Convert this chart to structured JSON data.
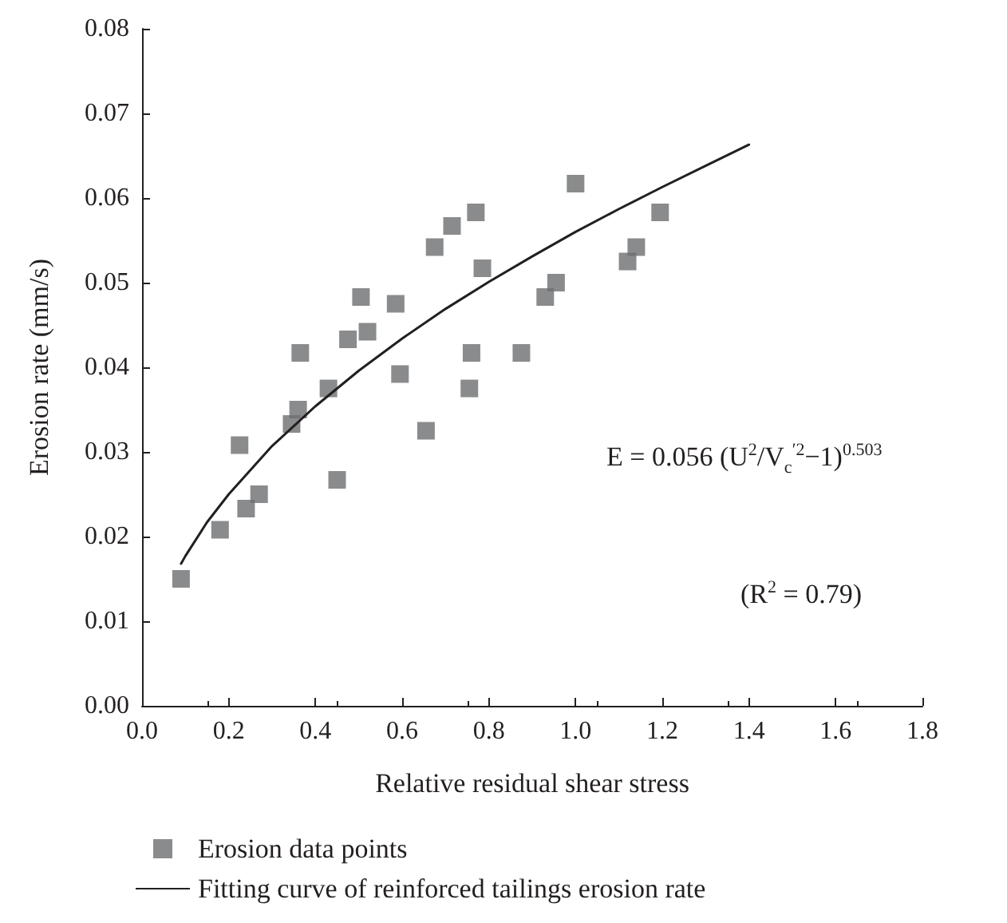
{
  "chart_data": {
    "type": "scatter",
    "xlabel": "Relative residual shear stress",
    "ylabel": "Erosion rate (mm/s)",
    "xlim": [
      0.0,
      1.8
    ],
    "xticks": [
      {
        "value": 0,
        "label": "0.0"
      },
      0.2,
      0.4,
      0.6,
      0.8,
      {
        "value": 1,
        "label": "1.0"
      },
      1.2,
      1.4,
      1.6,
      1.8
    ],
    "ylim": [
      0,
      0.08
    ],
    "yticks": [
      {
        "value": 0,
        "label": "0.00"
      },
      0.01,
      0.02,
      0.03,
      0.04,
      0.05,
      0.06,
      0.07,
      0.08
    ],
    "grid": false,
    "legend": "bottom left",
    "marker": "square",
    "series": [
      {
        "name": "Erosion data points",
        "color": "#6d6e71",
        "x": [
          0.09,
          0.18,
          0.225,
          0.24,
          0.27,
          0.345,
          0.36,
          0.365,
          0.43,
          0.45,
          0.475,
          0.505,
          0.52,
          0.585,
          0.595,
          0.655,
          0.675,
          0.715,
          0.755,
          0.76,
          0.77,
          0.785,
          0.875,
          0.93,
          0.955,
          1.0,
          1.12,
          1.14,
          1.195
        ],
        "values": [
          0.015,
          0.0208,
          0.0308,
          0.0233,
          0.025,
          0.0333,
          0.035,
          0.0417,
          0.0375,
          0.0267,
          0.0433,
          0.0483,
          0.0442,
          0.0475,
          0.0392,
          0.0325,
          0.0542,
          0.0567,
          0.0375,
          0.0417,
          0.0583,
          0.0517,
          0.0417,
          0.0483,
          0.05,
          0.0617,
          0.0525,
          0.0542,
          0.0583
        ]
      },
      {
        "name": "Fitting curve of reinforced tailings erosion rate",
        "type": "line",
        "marker": "none",
        "line_style": "solid",
        "color": "#231f20",
        "x": [
          0.09,
          0.1,
          0.15,
          0.2,
          0.3,
          0.4,
          0.5,
          0.6,
          0.7,
          0.8,
          0.9,
          1.0,
          1.1,
          1.2,
          1.3,
          1.4
        ],
        "values": [
          0.0168,
          0.0177,
          0.0217,
          0.025,
          0.0307,
          0.0354,
          0.0396,
          0.0434,
          0.0469,
          0.0501,
          0.0531,
          0.056,
          0.0587,
          0.0613,
          0.0638,
          0.0663
        ]
      }
    ],
    "annotations": [
      "E = 0.056 (U$^{2}$/V$_{c}$$^{′2}$−1)$^{0.503}$",
      "(R$^{2}$ = 0.79)"
    ]
  }
}
